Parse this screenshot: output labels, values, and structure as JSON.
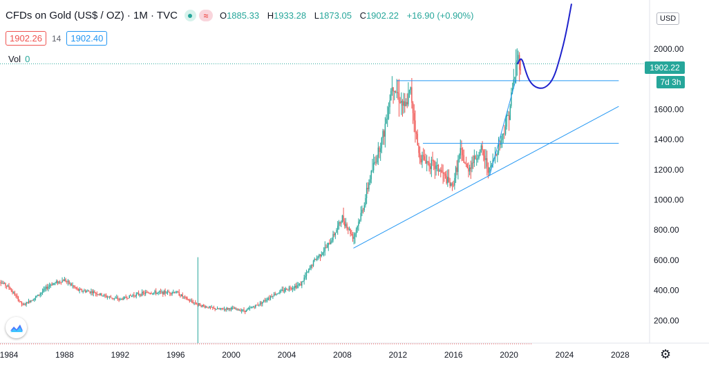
{
  "header": {
    "title": "CFDs on Gold (US$ / OZ) · 1M · TVC",
    "wave_icon": "wave-icon",
    "dot_icon": "dot-icon",
    "ohlc": {
      "o_label": "O",
      "o_value": "1885.33",
      "h_label": "H",
      "h_value": "1933.28",
      "l_label": "L",
      "l_value": "1873.05",
      "c_label": "C",
      "c_value": "1902.22",
      "change": "+16.90 (+0.90%)"
    }
  },
  "quote": {
    "bid": "1902.26",
    "spread": "14",
    "ask": "1902.40"
  },
  "volume": {
    "label": "Vol",
    "value": "0"
  },
  "price_axis": {
    "currency": "USD",
    "last_price": "1902.22",
    "countdown": "7d 3h"
  },
  "colors": {
    "up": "#26a69a",
    "down": "#ef5350",
    "drawing": "#2196f3",
    "forecast": "#1e22cc",
    "text": "#131722"
  },
  "chart_data": {
    "type": "candlestick",
    "title": "CFDs on Gold (US$ / OZ)",
    "interval": "1M",
    "x_range": [
      1983,
      2029
    ],
    "ylim": [
      80,
      2300
    ],
    "yticks": [
      {
        "value": 200,
        "label": "200.00"
      },
      {
        "value": 400,
        "label": "400.00"
      },
      {
        "value": 600,
        "label": "600.00"
      },
      {
        "value": 800,
        "label": "800.00"
      },
      {
        "value": 1000,
        "label": "1000.00"
      },
      {
        "value": 1200,
        "label": "1200.00"
      },
      {
        "value": 1400,
        "label": "1400.00"
      },
      {
        "value": 1600,
        "label": "1600.00"
      },
      {
        "value": 2000,
        "label": "2000.00"
      }
    ],
    "xticks": [
      {
        "value": 1984,
        "label": "1984"
      },
      {
        "value": 1988,
        "label": "1988"
      },
      {
        "value": 1992,
        "label": "1992"
      },
      {
        "value": 1996,
        "label": "1996"
      },
      {
        "value": 2000,
        "label": "2000"
      },
      {
        "value": 2004,
        "label": "2004"
      },
      {
        "value": 2008,
        "label": "2008"
      },
      {
        "value": 2012,
        "label": "2012"
      },
      {
        "value": 2016,
        "label": "2016"
      },
      {
        "value": 2020,
        "label": "2020"
      },
      {
        "value": 2024,
        "label": "2024"
      },
      {
        "value": 2028,
        "label": "2028"
      }
    ],
    "price_path": [
      [
        1983.0,
        480
      ],
      [
        1984.0,
        420
      ],
      [
        1985.0,
        300
      ],
      [
        1986.0,
        360
      ],
      [
        1987.0,
        440
      ],
      [
        1988.0,
        470
      ],
      [
        1989.0,
        400
      ],
      [
        1990.0,
        390
      ],
      [
        1991.0,
        360
      ],
      [
        1992.0,
        340
      ],
      [
        1993.0,
        370
      ],
      [
        1994.0,
        385
      ],
      [
        1995.0,
        385
      ],
      [
        1996.0,
        390
      ],
      [
        1997.0,
        330
      ],
      [
        1998.0,
        295
      ],
      [
        1999.0,
        275
      ],
      [
        2000.0,
        280
      ],
      [
        2001.0,
        265
      ],
      [
        2002.0,
        310
      ],
      [
        2003.0,
        370
      ],
      [
        2004.0,
        410
      ],
      [
        2005.0,
        440
      ],
      [
        2006.0,
        600
      ],
      [
        2007.0,
        700
      ],
      [
        2008.0,
        880
      ],
      [
        2008.8,
        750
      ],
      [
        2009.5,
        950
      ],
      [
        2010.0,
        1150
      ],
      [
        2011.0,
        1450
      ],
      [
        2011.6,
        1780
      ],
      [
        2012.0,
        1700
      ],
      [
        2012.5,
        1600
      ],
      [
        2012.9,
        1730
      ],
      [
        2013.5,
        1300
      ],
      [
        2014.0,
        1260
      ],
      [
        2015.0,
        1200
      ],
      [
        2015.9,
        1080
      ],
      [
        2016.5,
        1320
      ],
      [
        2017.0,
        1200
      ],
      [
        2017.5,
        1270
      ],
      [
        2018.0,
        1330
      ],
      [
        2018.6,
        1190
      ],
      [
        2019.0,
        1300
      ],
      [
        2019.5,
        1420
      ],
      [
        2020.0,
        1580
      ],
      [
        2020.6,
        1950
      ],
      [
        2020.9,
        1880
      ]
    ],
    "volume_spike": {
      "x": 1997.6,
      "value": 620
    },
    "drawings": {
      "trendline_long": [
        [
          2008.8,
          680
        ],
        [
          2027.9,
          1620
        ]
      ],
      "horizontal_top": [
        [
          2011.9,
          1790
        ],
        [
          2027.9,
          1790
        ]
      ],
      "horizontal_mid": [
        [
          2013.8,
          1375
        ],
        [
          2027.9,
          1375
        ]
      ],
      "trendline_steep": [
        [
          2018.6,
          1160
        ],
        [
          2020.5,
          1800
        ]
      ],
      "forecast_curve": [
        [
          2020.6,
          1900
        ],
        [
          2020.9,
          1950
        ],
        [
          2021.2,
          1850
        ],
        [
          2021.5,
          1780
        ],
        [
          2022.0,
          1740
        ],
        [
          2022.6,
          1740
        ],
        [
          2023.2,
          1800
        ],
        [
          2023.7,
          1950
        ],
        [
          2024.1,
          2100
        ],
        [
          2024.5,
          2300
        ]
      ]
    },
    "last_price": 1902.22
  }
}
